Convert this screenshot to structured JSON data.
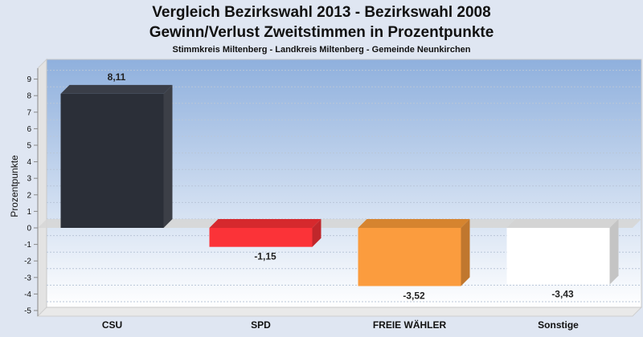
{
  "chart_data": {
    "type": "bar",
    "title": "Vergleich Bezirkswahl 2013 - Bezirkswahl 2008",
    "subtitle": "Gewinn/Verlust Zweitstimmen in Prozentpunkte",
    "subsubtitle": "Stimmkreis Miltenberg - Landkreis Miltenberg - Gemeinde Neunkirchen",
    "ylabel": "Prozentpunkte",
    "xlabel": "",
    "ylim": [
      -5,
      10
    ],
    "yticks": [
      -5,
      -4,
      -3,
      -2,
      -1,
      0,
      1,
      2,
      3,
      4,
      5,
      6,
      7,
      8,
      9
    ],
    "grid": true,
    "categories": [
      "CSU",
      "SPD",
      "FREIE WÄHLER",
      "Sonstige"
    ],
    "values": [
      8.11,
      -1.15,
      -3.52,
      -3.43
    ],
    "value_labels": [
      "8,11",
      "-1,15",
      "-3,52",
      "-3,43"
    ],
    "colors": [
      "#2b2f38",
      "#fb3338",
      "#fb9c3e",
      "#ffffff"
    ],
    "side_colors": [
      "#3c3f47",
      "#c0272b",
      "#c0772e",
      "#c4c4c4"
    ],
    "top_colors": [
      "#3a3e48",
      "#d6292d",
      "#d6842f",
      "#d4d4d4"
    ]
  }
}
